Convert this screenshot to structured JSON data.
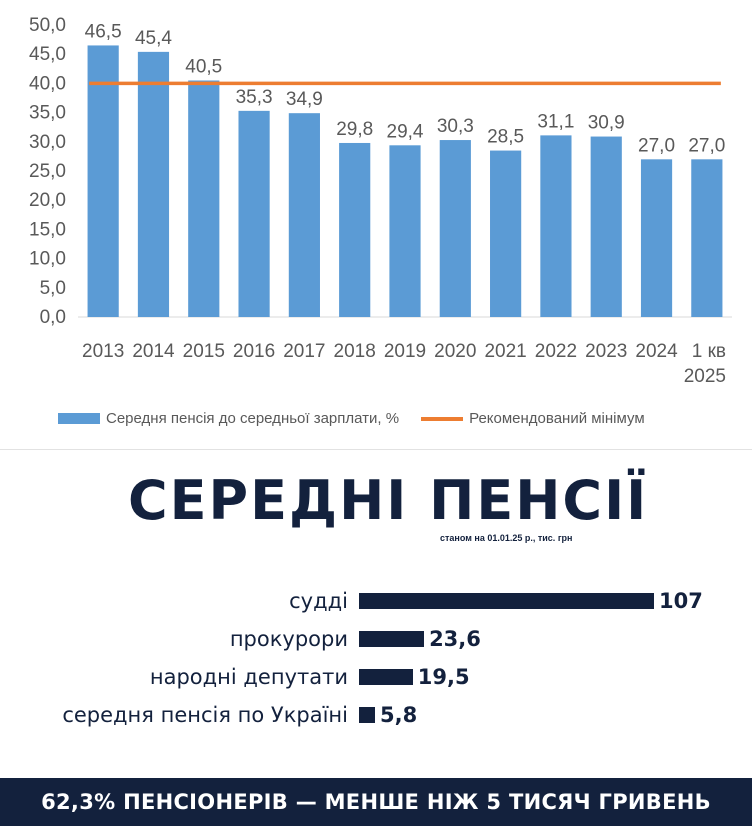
{
  "chart_data": [
    {
      "type": "bar",
      "categories": [
        "2013",
        "2014",
        "2015",
        "2016",
        "2017",
        "2018",
        "2019",
        "2020",
        "2021",
        "2022",
        "2023",
        "2024",
        "1 кв 2025"
      ],
      "category_lines": [
        [
          "2013"
        ],
        [
          "2014"
        ],
        [
          "2015"
        ],
        [
          "2016"
        ],
        [
          "2017"
        ],
        [
          "2018"
        ],
        [
          "2019"
        ],
        [
          "2020"
        ],
        [
          "2021"
        ],
        [
          "2022"
        ],
        [
          "2023"
        ],
        [
          "2024"
        ],
        [
          "1 кв",
          "2025"
        ]
      ],
      "series": [
        {
          "name": "Середня пенсія до середньої зарплати, %",
          "values": [
            46.5,
            45.4,
            40.5,
            35.3,
            34.9,
            29.8,
            29.4,
            30.3,
            28.5,
            31.1,
            30.9,
            27.0,
            27.0
          ],
          "color": "#5b9bd5",
          "kind": "bar"
        },
        {
          "name": "Рекомендований мінімум",
          "values": [
            40,
            40,
            40,
            40,
            40,
            40,
            40,
            40,
            40,
            40,
            40,
            40,
            40
          ],
          "color": "#ed7d31",
          "kind": "line"
        }
      ],
      "value_labels": [
        "46,5",
        "45,4",
        "40,5",
        "35,3",
        "34,9",
        "29,8",
        "29,4",
        "30,3",
        "28,5",
        "31,1",
        "30,9",
        "27,0",
        "27,0"
      ],
      "ylim": [
        0,
        50
      ],
      "y_ticks": [
        0,
        5,
        10,
        15,
        20,
        25,
        30,
        35,
        40,
        45,
        50
      ],
      "y_tick_labels": [
        "0,0",
        "5,0",
        "10,0",
        "15,0",
        "20,0",
        "25,0",
        "30,0",
        "35,0",
        "40,0",
        "45,0",
        "50,0"
      ],
      "grid": false,
      "legend_position": "bottom"
    },
    {
      "type": "bar",
      "orientation": "horizontal",
      "title": "СЕРЕДНІ ПЕНСІЇ",
      "subtitle": "станом на 01.01.25 р., тис. грн",
      "categories": [
        "судді",
        "прокурори",
        "народні депутати",
        "середня пенсія по Україні"
      ],
      "values": [
        107,
        23.6,
        19.5,
        5.8
      ],
      "value_labels": [
        "107",
        "23,6",
        "19,5",
        "5,8"
      ],
      "color": "#13213d"
    }
  ],
  "legend": {
    "bar_label": "Середня пенсія до середньої зарплати, %",
    "line_label": "Рекомендований мінімум"
  },
  "footer": {
    "text": "62,3% ПЕНСІОНЕРІВ — МЕНШЕ НІЖ 5 ТИСЯЧ ГРИВЕНЬ"
  }
}
